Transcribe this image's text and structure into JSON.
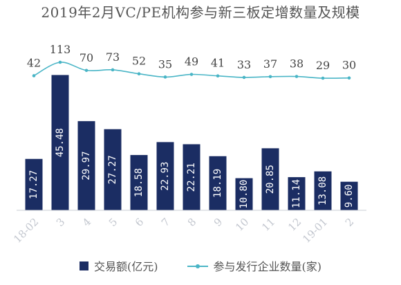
{
  "chart_data": {
    "type": "bar+line",
    "title": "2019年2月VC/PE机构参与新三板定增数量及规模",
    "categories": [
      "18-02",
      "3",
      "4",
      "5",
      "6",
      "7",
      "8",
      "9",
      "10",
      "11",
      "12",
      "19-01",
      "2"
    ],
    "bar_labels": [
      "17.27",
      "45.48",
      "29.97",
      "27.27",
      "18.58",
      "22.93",
      "22.21",
      "18.19",
      "10.80",
      "20.85",
      "11.14",
      "13.08",
      "9.60"
    ],
    "series": [
      {
        "name": "交易额(亿元)",
        "type": "bar",
        "color": "#1b2d63",
        "values": [
          17.27,
          45.48,
          29.97,
          27.27,
          18.58,
          22.93,
          22.21,
          18.19,
          10.8,
          20.85,
          11.14,
          13.08,
          9.6
        ]
      },
      {
        "name": "参与发行企业数量(家)",
        "type": "line",
        "color": "#49b5c6",
        "values": [
          42,
          113,
          70,
          73,
          52,
          35,
          49,
          41,
          33,
          37,
          38,
          29,
          30
        ]
      }
    ],
    "legend_position": "bottom",
    "grid": false
  },
  "legend": {
    "bar_label": "交易额(亿元)",
    "line_label": "参与发行企业数量(家)"
  }
}
